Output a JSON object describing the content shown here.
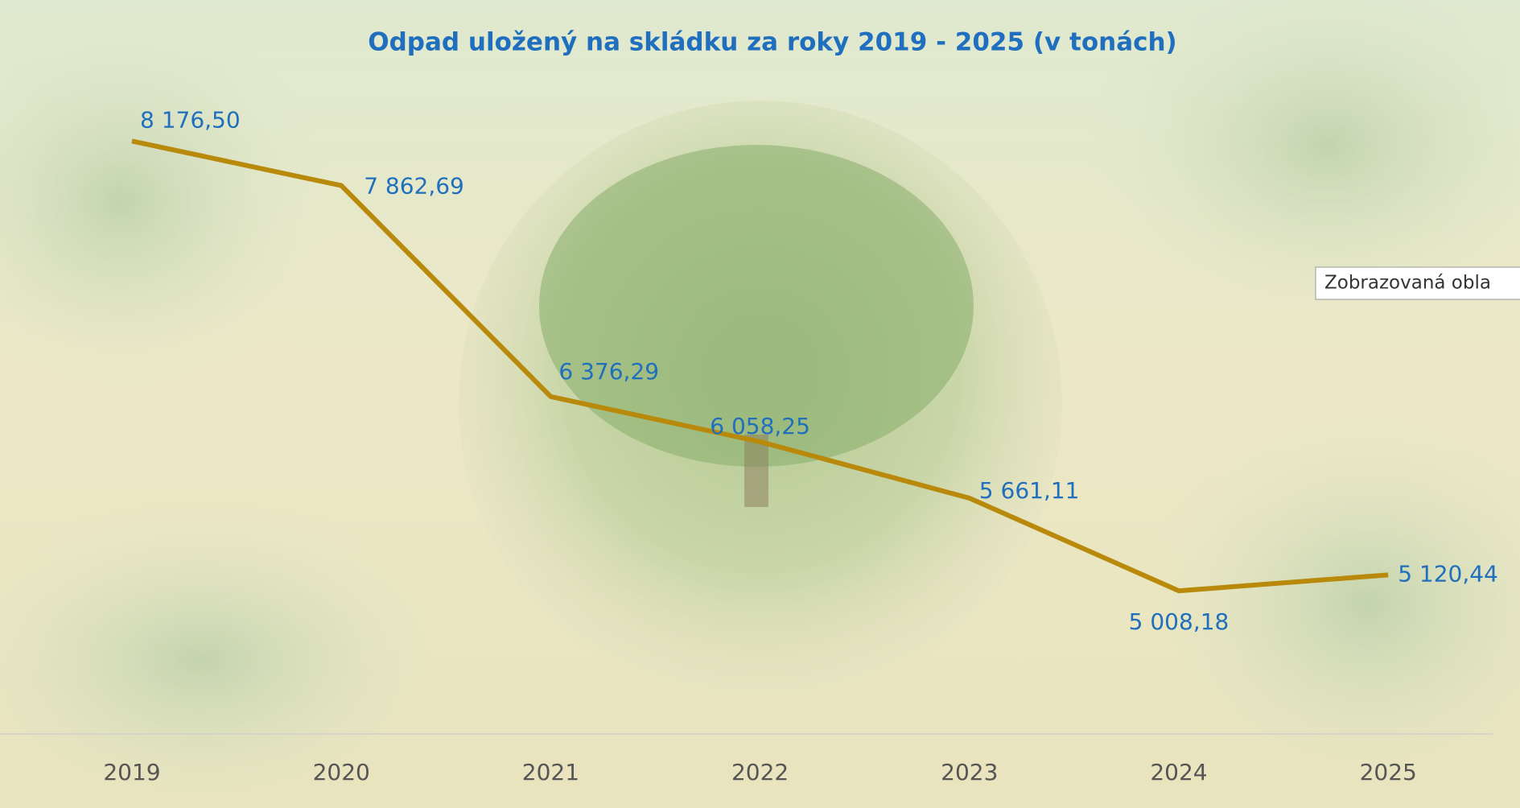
{
  "chart_data": {
    "type": "line",
    "title": "Odpad uložený na skládku za roky 2019 - 2025 (v tonách)",
    "categories": [
      "2019",
      "2020",
      "2021",
      "2022",
      "2023",
      "2024",
      "2025"
    ],
    "series": [
      {
        "color": "#b8890a",
        "values": [
          8176.5,
          7862.69,
          6376.29,
          6058.25,
          5661.11,
          5008.18,
          5120.44
        ],
        "value_labels": [
          "8 176,50",
          "7 862,69",
          "6 376,29",
          "6 058,25",
          "5 661,11",
          "5 008,18",
          "5 120,44"
        ]
      }
    ],
    "ylim": [
      4000,
      9000
    ]
  },
  "tooltip": "Zobrazovaná obla"
}
